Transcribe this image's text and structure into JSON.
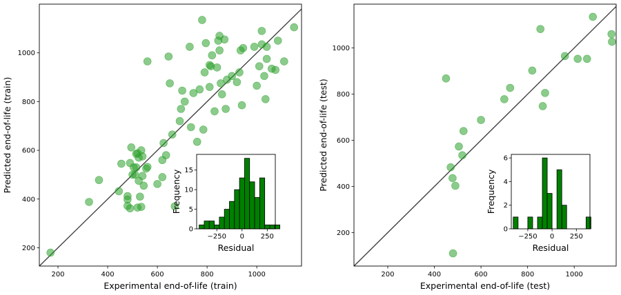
{
  "chart_data": [
    {
      "type": "scatter",
      "xlabel": "Experimental end-of-life (train)",
      "ylabel": "Predicted end-of-life (train)",
      "xlim": [
        125,
        1180
      ],
      "ylim": [
        125,
        1200
      ],
      "xticks": [
        200,
        400,
        600,
        800,
        1000
      ],
      "yticks": [
        200,
        400,
        600,
        800,
        1000
      ],
      "reference_line": "y = x",
      "point_color": "#2ca02c",
      "x": [
        170,
        325,
        365,
        445,
        455,
        480,
        480,
        480,
        490,
        490,
        495,
        500,
        505,
        510,
        515,
        515,
        520,
        520,
        525,
        525,
        530,
        535,
        535,
        540,
        540,
        545,
        555,
        560,
        560,
        600,
        620,
        620,
        625,
        635,
        645,
        650,
        660,
        670,
        690,
        695,
        700,
        710,
        730,
        735,
        745,
        760,
        770,
        780,
        785,
        790,
        795,
        810,
        810,
        815,
        820,
        830,
        840,
        845,
        850,
        850,
        855,
        860,
        870,
        875,
        880,
        900,
        920,
        930,
        935,
        940,
        945,
        990,
        1000,
        1010,
        1020,
        1020,
        1030,
        1035,
        1040,
        1040,
        1060,
        1075,
        1085,
        1110,
        1150
      ],
      "y": [
        180,
        388,
        478,
        432,
        545,
        412,
        398,
        372,
        362,
        548,
        612,
        500,
        530,
        500,
        585,
        530,
        588,
        365,
        475,
        570,
        410,
        600,
        368,
        575,
        495,
        455,
        525,
        965,
        532,
        462,
        560,
        490,
        630,
        580,
        985,
        875,
        665,
        370,
        720,
        770,
        845,
        800,
        1025,
        695,
        835,
        635,
        850,
        1135,
        685,
        920,
        1040,
        950,
        860,
        945,
        990,
        760,
        940,
        1050,
        1010,
        1070,
        875,
        830,
        1055,
        770,
        890,
        905,
        880,
        920,
        1010,
        785,
        1020,
        1025,
        865,
        945,
        1035,
        1090,
        905,
        810,
        975,
        1025,
        935,
        930,
        1050,
        965,
        1105
      ],
      "inset": {
        "type": "bar",
        "xlabel": "Residual",
        "ylabel": "Frequency",
        "xlim": [
          -450,
          330
        ],
        "ylim": [
          0,
          19
        ],
        "xticks": [
          -250,
          0,
          250
        ],
        "yticks": [
          0,
          5,
          10,
          15
        ],
        "bar_color": "#008000",
        "bin_start": -425,
        "bin_width": 50,
        "values": [
          1,
          2,
          2,
          1,
          3,
          5,
          7,
          10,
          13,
          18,
          12,
          8,
          13,
          1,
          1,
          1
        ]
      }
    },
    {
      "type": "scatter",
      "xlabel": "Experimental end-of-life (test)",
      "ylabel": "Predicted end-of-life (test)",
      "xlim": [
        55,
        1180
      ],
      "ylim": [
        55,
        1190
      ],
      "xticks": [
        200,
        400,
        600,
        800,
        1000
      ],
      "yticks": [
        200,
        400,
        600,
        800,
        1000
      ],
      "reference_line": "y = x",
      "point_color": "#2ca02c",
      "x": [
        450,
        470,
        478,
        480,
        490,
        505,
        520,
        525,
        600,
        700,
        725,
        820,
        855,
        865,
        875,
        960,
        1015,
        1055,
        1080,
        1160,
        1162
      ],
      "y": [
        868,
        483,
        436,
        110,
        403,
        573,
        535,
        640,
        688,
        778,
        827,
        902,
        1082,
        748,
        805,
        965,
        953,
        953,
        1135,
        1060,
        1027
      ],
      "inset": {
        "type": "bar",
        "xlabel": "Residual",
        "ylabel": "Frequency",
        "xlim": [
          -420,
          390
        ],
        "ylim": [
          0,
          6.3
        ],
        "xticks": [
          -250,
          0,
          250
        ],
        "yticks": [
          0,
          2,
          4,
          6
        ],
        "bar_color": "#008000",
        "bin_start": -400,
        "bin_width": 50,
        "values": [
          1,
          0,
          0,
          1,
          0,
          1,
          6,
          3,
          0,
          5,
          2,
          0,
          0,
          0,
          0,
          1
        ]
      }
    }
  ]
}
